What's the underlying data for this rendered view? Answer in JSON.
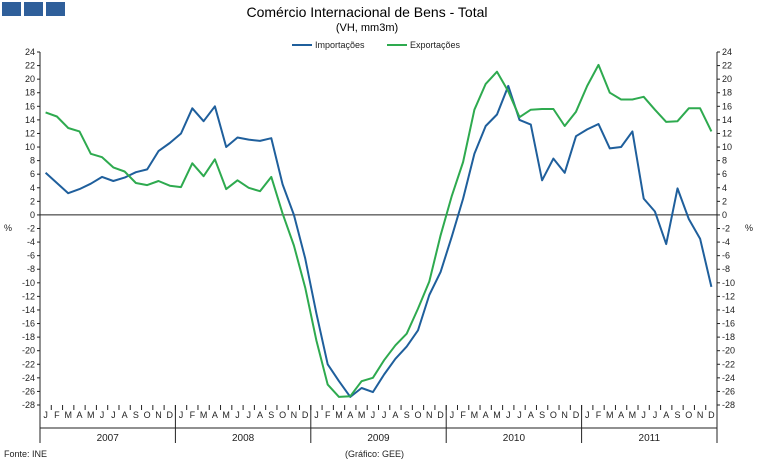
{
  "header": {
    "title": "Comércio Internacional de Bens - Total",
    "subtitle": "(VH, mm3m)"
  },
  "footer": {
    "source": "Fonte: INE",
    "credit": "(Gráfico: GEE)"
  },
  "colors": {
    "importacoes": "#1f5f9c",
    "exportacoes": "#2eaa4f",
    "logo": "#2f5f9a"
  },
  "chart_data": {
    "type": "line",
    "title": "Comércio Internacional de Bens - Total",
    "subtitle": "(VH, mm3m)",
    "ylabel_left": "%",
    "ylabel_right": "%",
    "ylim": [
      -28,
      24
    ],
    "yticks": [
      -28,
      -26,
      -24,
      -22,
      -20,
      -18,
      -16,
      -14,
      -12,
      -10,
      -8,
      -6,
      -4,
      -2,
      0,
      2,
      4,
      6,
      8,
      10,
      12,
      14,
      16,
      18,
      20,
      22,
      24
    ],
    "legend_position": "top-center",
    "grid": false,
    "years": [
      "2007",
      "2008",
      "2009",
      "2010",
      "2011"
    ],
    "months": [
      "J",
      "F",
      "M",
      "A",
      "M",
      "J",
      "J",
      "A",
      "S",
      "O",
      "N",
      "D"
    ],
    "series": [
      {
        "name": "Importações",
        "values": [
          6.2,
          4.7,
          3.2,
          3.8,
          4.6,
          5.6,
          5.0,
          5.5,
          6.3,
          6.7,
          9.4,
          10.6,
          12.0,
          15.7,
          13.8,
          16.0,
          10.0,
          11.4,
          11.1,
          10.9,
          11.3,
          4.5,
          0.0,
          -6.4,
          -14.5,
          -22.0,
          -24.5,
          -26.8,
          -25.5,
          -26.1,
          -23.5,
          -21.2,
          -19.4,
          -17.0,
          -11.8,
          -8.4,
          -3.2,
          2.4,
          9.0,
          13.1,
          14.8,
          19.0,
          14.0,
          13.3,
          5.1,
          8.3,
          6.2,
          11.6,
          12.6,
          13.4,
          9.8,
          10.0,
          12.3,
          2.4,
          0.5,
          -4.3,
          3.9,
          -0.6,
          -3.5,
          -10.6
        ]
      },
      {
        "name": "Exportações",
        "values": [
          15.1,
          14.5,
          12.8,
          12.3,
          9.0,
          8.5,
          7.0,
          6.4,
          4.7,
          4.4,
          5.0,
          4.3,
          4.1,
          7.6,
          5.7,
          8.2,
          3.8,
          5.1,
          4.0,
          3.5,
          5.6,
          0.2,
          -4.5,
          -10.7,
          -18.5,
          -25.0,
          -26.8,
          -26.7,
          -24.5,
          -24.0,
          -21.4,
          -19.2,
          -17.5,
          -13.8,
          -9.8,
          -3.0,
          2.8,
          7.8,
          15.5,
          19.3,
          21.1,
          18.2,
          14.4,
          15.5,
          15.6,
          15.6,
          13.1,
          15.2,
          19.0,
          22.1,
          18.0,
          17.0,
          17.0,
          17.4,
          15.5,
          13.7,
          13.8,
          15.7,
          15.7,
          12.3
        ]
      }
    ]
  }
}
